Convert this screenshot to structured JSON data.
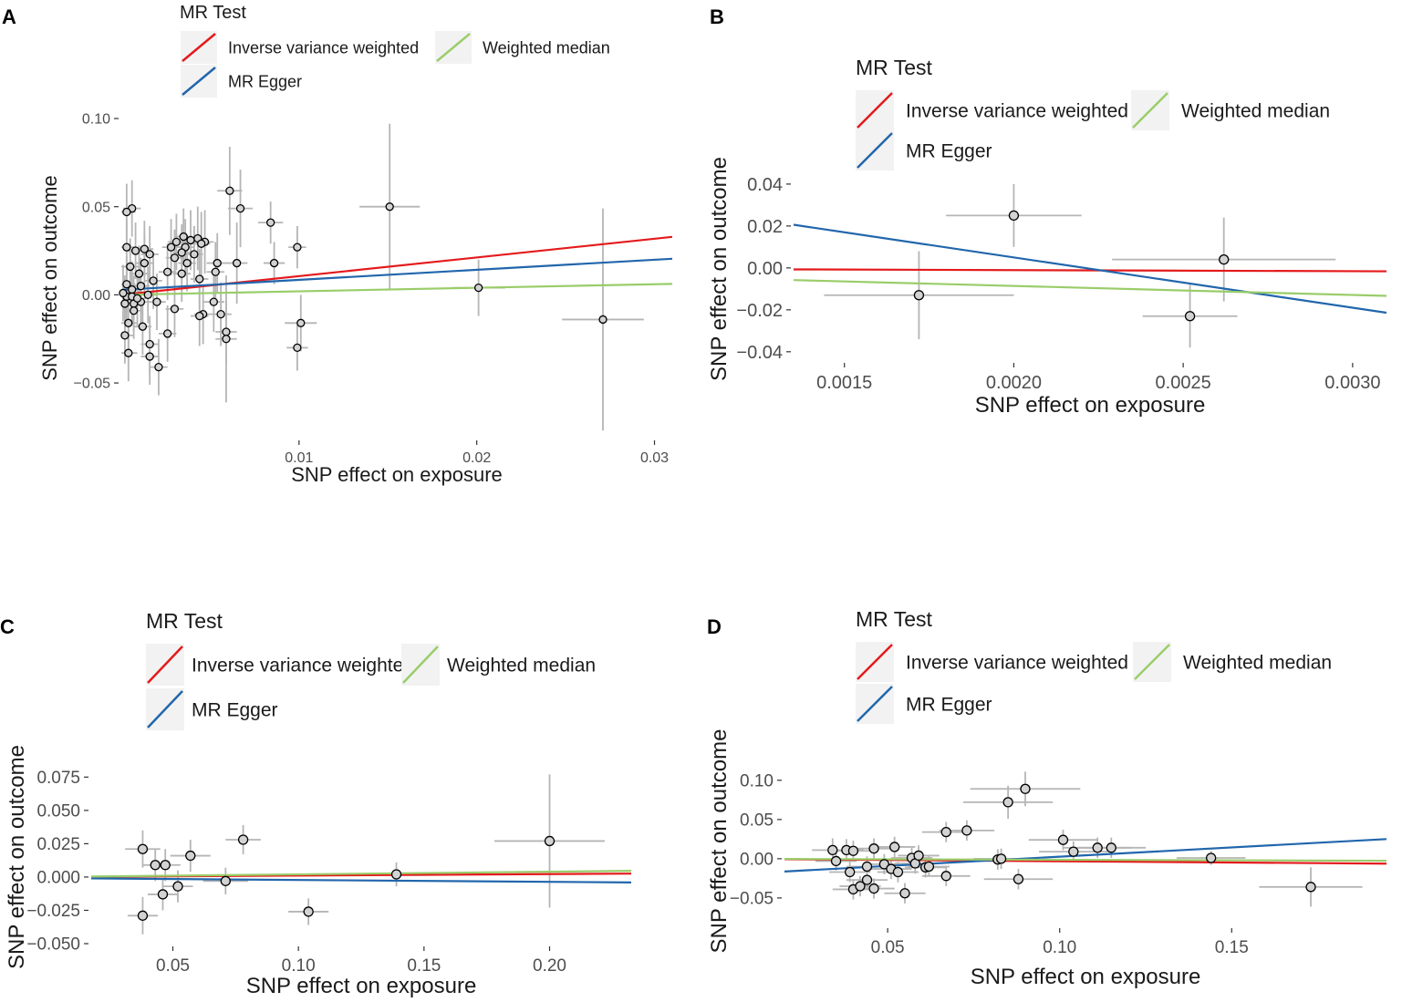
{
  "colors": {
    "ivw": "#E41A1C",
    "egger": "#2166AC",
    "wmedian": "#9ACD6A",
    "errorbar": "#B5B5B5",
    "point_fill": "#D3D3D3",
    "legend_key_bg": "#F2F2F2"
  },
  "legend": {
    "title": "MR Test",
    "items": [
      {
        "key": "ivw",
        "label": "Inverse variance weighted"
      },
      {
        "key": "wmedian",
        "label": "Weighted median"
      },
      {
        "key": "egger",
        "label": "MR Egger"
      }
    ]
  },
  "chart_data": [
    {
      "panel": "A",
      "type": "scatter",
      "xlabel": "SNP effect on exposure",
      "ylabel": "SNP effect on outcome",
      "xlim": [
        0.0,
        0.031
      ],
      "ylim": [
        -0.081,
        0.1
      ],
      "xticks": [
        {
          "v": 0.01,
          "label": "0.01"
        },
        {
          "v": 0.02,
          "label": "0.02"
        },
        {
          "v": 0.03,
          "label": "0.03"
        }
      ],
      "yticks": [
        {
          "v": 0.1,
          "label": "0.10"
        },
        {
          "v": 0.05,
          "label": "0.05"
        },
        {
          "v": 0.0,
          "label": "0.00"
        },
        {
          "v": -0.05,
          "label": "−0.05"
        }
      ],
      "lines": [
        {
          "key": "ivw",
          "intercept": 0.0,
          "slope": 1.06
        },
        {
          "key": "egger",
          "intercept": 0.0028,
          "slope": 0.57
        },
        {
          "key": "wmedian",
          "intercept": 0.0,
          "slope": 0.2
        }
      ],
      "points": [
        {
          "x": 0.0151,
          "y": 0.05,
          "xe": 0.0017,
          "ye": 0.047
        },
        {
          "x": 0.0201,
          "y": 0.004,
          "xe": 0.0015,
          "ye": 0.016
        },
        {
          "x": 0.0271,
          "y": -0.014,
          "xe": 0.0023,
          "ye": 0.063
        },
        {
          "x": 0.0101,
          "y": -0.016,
          "xe": 0.0009,
          "ye": 0.016
        },
        {
          "x": 0.0099,
          "y": -0.03,
          "xe": 0.0006,
          "ye": 0.013
        },
        {
          "x": 0.0099,
          "y": 0.027,
          "xe": 0.0005,
          "ye": 0.012
        },
        {
          "x": 0.0084,
          "y": 0.041,
          "xe": 0.0007,
          "ye": 0.012
        },
        {
          "x": 0.0086,
          "y": 0.018,
          "xe": 0.0006,
          "ye": 0.012
        },
        {
          "x": 0.0067,
          "y": 0.049,
          "xe": 0.0007,
          "ye": 0.022
        },
        {
          "x": 0.0061,
          "y": 0.059,
          "xe": 0.0007,
          "ye": 0.025
        },
        {
          "x": 0.0065,
          "y": 0.018,
          "xe": 0.0006,
          "ye": 0.023
        },
        {
          "x": 0.0059,
          "y": -0.021,
          "xe": 0.0006,
          "ye": 0.018
        },
        {
          "x": 0.0059,
          "y": -0.025,
          "xe": 0.0006,
          "ye": 0.036
        },
        {
          "x": 0.0056,
          "y": -0.011,
          "xe": 0.0006,
          "ye": 0.018
        },
        {
          "x": 0.0052,
          "y": -0.004,
          "xe": 0.0006,
          "ye": 0.017
        },
        {
          "x": 0.0054,
          "y": 0.018,
          "xe": 0.0006,
          "ye": 0.017
        },
        {
          "x": 0.0053,
          "y": 0.013,
          "xe": 0.0005,
          "ye": 0.017
        },
        {
          "x": 0.0047,
          "y": 0.03,
          "xe": 0.0005,
          "ye": 0.018
        },
        {
          "x": 0.0043,
          "y": 0.032,
          "xe": 0.0005,
          "ye": 0.018
        },
        {
          "x": 0.0045,
          "y": 0.029,
          "xe": 0.0005,
          "ye": 0.018
        },
        {
          "x": 0.0044,
          "y": 0.009,
          "xe": 0.0005,
          "ye": 0.017
        },
        {
          "x": 0.0046,
          "y": -0.011,
          "xe": 0.0005,
          "ye": 0.017
        },
        {
          "x": 0.0044,
          "y": -0.012,
          "xe": 0.0005,
          "ye": 0.017
        },
        {
          "x": 0.0041,
          "y": 0.023,
          "xe": 0.0005,
          "ye": 0.016
        },
        {
          "x": 0.0039,
          "y": 0.031,
          "xe": 0.0005,
          "ye": 0.017
        },
        {
          "x": 0.0037,
          "y": 0.018,
          "xe": 0.0005,
          "ye": 0.016
        },
        {
          "x": 0.0036,
          "y": 0.027,
          "xe": 0.0005,
          "ye": 0.016
        },
        {
          "x": 0.0035,
          "y": 0.033,
          "xe": 0.0005,
          "ye": 0.016
        },
        {
          "x": 0.0034,
          "y": 0.024,
          "xe": 0.0005,
          "ye": 0.016
        },
        {
          "x": 0.0034,
          "y": 0.012,
          "xe": 0.0005,
          "ye": 0.016
        },
        {
          "x": 0.0031,
          "y": 0.03,
          "xe": 0.0005,
          "ye": 0.016
        },
        {
          "x": 0.003,
          "y": 0.021,
          "xe": 0.0005,
          "ye": 0.016
        },
        {
          "x": 0.003,
          "y": -0.008,
          "xe": 0.0005,
          "ye": 0.016
        },
        {
          "x": 0.0028,
          "y": 0.027,
          "xe": 0.0005,
          "ye": 0.016
        },
        {
          "x": 0.0026,
          "y": 0.013,
          "xe": 0.0005,
          "ye": 0.016
        },
        {
          "x": 0.0026,
          "y": -0.022,
          "xe": 0.0005,
          "ye": 0.016
        },
        {
          "x": 0.0016,
          "y": -0.035,
          "xe": 0.0005,
          "ye": 0.016
        },
        {
          "x": 0.0016,
          "y": 0.023,
          "xe": 0.0005,
          "ye": 0.016
        },
        {
          "x": 0.0016,
          "y": -0.028,
          "xe": 0.0005,
          "ye": 0.016
        },
        {
          "x": 0.0013,
          "y": 0.026,
          "xe": 0.0005,
          "ye": 0.016
        },
        {
          "x": 0.0013,
          "y": 0.018,
          "xe": 0.0005,
          "ye": 0.016
        },
        {
          "x": 0.0011,
          "y": 0.005,
          "xe": 0.0005,
          "ye": 0.016
        },
        {
          "x": 0.0011,
          "y": -0.004,
          "xe": 0.0005,
          "ye": 0.016
        },
        {
          "x": 0.001,
          "y": 0.012,
          "xe": 0.0005,
          "ye": 0.016
        },
        {
          "x": 0.0008,
          "y": 0.025,
          "xe": 0.0005,
          "ye": 0.016
        },
        {
          "x": 0.0007,
          "y": -0.005,
          "xe": 0.0005,
          "ye": 0.016
        },
        {
          "x": 0.0007,
          "y": -0.009,
          "xe": 0.0005,
          "ye": 0.016
        },
        {
          "x": 0.0006,
          "y": 0.003,
          "xe": 0.0005,
          "ye": 0.016
        },
        {
          "x": 0.0006,
          "y": 0.049,
          "xe": 0.0005,
          "ye": 0.016
        },
        {
          "x": 0.0004,
          "y": -0.033,
          "xe": 0.0005,
          "ye": 0.016
        },
        {
          "x": 0.0004,
          "y": -0.016,
          "xe": 0.0005,
          "ye": 0.016
        },
        {
          "x": 0.0003,
          "y": 0.047,
          "xe": 0.0005,
          "ye": 0.016
        },
        {
          "x": 0.0003,
          "y": 0.027,
          "xe": 0.0005,
          "ye": 0.016
        },
        {
          "x": 0.0003,
          "y": 0.006,
          "xe": 0.0005,
          "ye": 0.016
        },
        {
          "x": 0.0003,
          "y": -0.001,
          "xe": 0.0005,
          "ye": 0.016
        },
        {
          "x": 0.0002,
          "y": -0.023,
          "xe": 0.0005,
          "ye": 0.016
        },
        {
          "x": 0.0002,
          "y": -0.005,
          "xe": 0.0005,
          "ye": 0.016
        },
        {
          "x": 0.0001,
          "y": 0.001,
          "xe": 0.0005,
          "ye": 0.016
        },
        {
          "x": 0.0005,
          "y": 0.016,
          "xe": 0.0005,
          "ye": 0.016
        },
        {
          "x": 0.0006,
          "y": -0.001,
          "xe": 0.0005,
          "ye": 0.016
        },
        {
          "x": 0.0009,
          "y": -0.002,
          "xe": 0.0005,
          "ye": 0.016
        },
        {
          "x": 0.0012,
          "y": -0.018,
          "xe": 0.0005,
          "ye": 0.016
        },
        {
          "x": 0.0018,
          "y": 0.008,
          "xe": 0.0005,
          "ye": 0.016
        },
        {
          "x": 0.002,
          "y": -0.004,
          "xe": 0.0005,
          "ye": 0.016
        },
        {
          "x": 0.0021,
          "y": -0.041,
          "xe": 0.0005,
          "ye": 0.016
        },
        {
          "x": 0.0015,
          "y": 0.0,
          "xe": 0.0005,
          "ye": 0.016
        }
      ]
    },
    {
      "panel": "B",
      "type": "scatter",
      "xlabel": "SNP effect on exposure",
      "ylabel": "SNP effect on outcome",
      "xlim": [
        0.00135,
        0.0031
      ],
      "ylim": [
        -0.044,
        0.043
      ],
      "xticks": [
        {
          "v": 0.0015,
          "label": "0.0015"
        },
        {
          "v": 0.002,
          "label": "0.0020"
        },
        {
          "v": 0.0025,
          "label": "0.0025"
        },
        {
          "v": 0.003,
          "label": "0.0030"
        }
      ],
      "yticks": [
        {
          "v": 0.04,
          "label": "0.04"
        },
        {
          "v": 0.02,
          "label": "0.02"
        },
        {
          "v": 0.0,
          "label": "0.00"
        },
        {
          "v": -0.02,
          "label": "−0.02"
        },
        {
          "v": -0.04,
          "label": "−0.04"
        }
      ],
      "lines": [
        {
          "key": "ivw",
          "intercept": 0.0,
          "slope": -0.52
        },
        {
          "key": "egger",
          "intercept": 0.053,
          "slope": -24.0
        },
        {
          "key": "wmedian",
          "intercept": 0.0,
          "slope": -4.3
        }
      ],
      "points": [
        {
          "x": 0.00172,
          "y": -0.013,
          "xe": 0.00028,
          "ye": 0.021
        },
        {
          "x": 0.002,
          "y": 0.025,
          "xe": 0.0002,
          "ye": 0.015
        },
        {
          "x": 0.00252,
          "y": -0.023,
          "xe": 0.00014,
          "ye": 0.015
        },
        {
          "x": 0.00262,
          "y": 0.004,
          "xe": 0.00033,
          "ye": 0.02
        }
      ]
    },
    {
      "panel": "C",
      "type": "scatter",
      "xlabel": "SNP effect on exposure",
      "ylabel": "SNP effect on outcome",
      "xlim": [
        0.0175,
        0.2325
      ],
      "ylim": [
        -0.05,
        0.08
      ],
      "xticks": [
        {
          "v": 0.05,
          "label": "0.05"
        },
        {
          "v": 0.1,
          "label": "0.10"
        },
        {
          "v": 0.15,
          "label": "0.15"
        },
        {
          "v": 0.2,
          "label": "0.20"
        }
      ],
      "yticks": [
        {
          "v": 0.075,
          "label": "0.075"
        },
        {
          "v": 0.05,
          "label": "0.050"
        },
        {
          "v": 0.025,
          "label": "0.025"
        },
        {
          "v": 0.0,
          "label": "0.000"
        },
        {
          "v": -0.025,
          "label": "−0.025"
        },
        {
          "v": -0.05,
          "label": "−0.050"
        }
      ],
      "lines": [
        {
          "key": "ivw",
          "intercept": 0.0,
          "slope": 0.011
        },
        {
          "key": "egger",
          "intercept": -0.0008,
          "slope": -0.014
        },
        {
          "key": "wmedian",
          "intercept": 0.0,
          "slope": 0.02
        }
      ],
      "points": [
        {
          "x": 0.038,
          "y": 0.021,
          "xe": 0.007,
          "ye": 0.014
        },
        {
          "x": 0.038,
          "y": -0.029,
          "xe": 0.006,
          "ye": 0.014
        },
        {
          "x": 0.043,
          "y": 0.009,
          "xe": 0.005,
          "ye": 0.012
        },
        {
          "x": 0.047,
          "y": 0.009,
          "xe": 0.006,
          "ye": 0.012
        },
        {
          "x": 0.046,
          "y": -0.013,
          "xe": 0.006,
          "ye": 0.012
        },
        {
          "x": 0.052,
          "y": -0.007,
          "xe": 0.006,
          "ye": 0.012
        },
        {
          "x": 0.057,
          "y": 0.016,
          "xe": 0.008,
          "ye": 0.012
        },
        {
          "x": 0.071,
          "y": -0.003,
          "xe": 0.009,
          "ye": 0.01
        },
        {
          "x": 0.078,
          "y": 0.028,
          "xe": 0.007,
          "ye": 0.011
        },
        {
          "x": 0.104,
          "y": -0.026,
          "xe": 0.008,
          "ye": 0.01
        },
        {
          "x": 0.139,
          "y": 0.002,
          "xe": 0.015,
          "ye": 0.009
        },
        {
          "x": 0.2,
          "y": 0.027,
          "xe": 0.022,
          "ye": 0.05
        }
      ]
    },
    {
      "panel": "D",
      "type": "scatter",
      "xlabel": "SNP effect on exposure",
      "ylabel": "SNP effect on outcome",
      "xlim": [
        0.02,
        0.195
      ],
      "ylim": [
        -0.085,
        0.13
      ],
      "xticks": [
        {
          "v": 0.05,
          "label": "0.05"
        },
        {
          "v": 0.1,
          "label": "0.10"
        },
        {
          "v": 0.15,
          "label": "0.15"
        }
      ],
      "yticks": [
        {
          "v": 0.1,
          "label": "0.10"
        },
        {
          "v": 0.05,
          "label": "0.05"
        },
        {
          "v": 0.0,
          "label": "0.00"
        },
        {
          "v": -0.05,
          "label": "−0.05"
        }
      ],
      "lines": [
        {
          "key": "ivw",
          "intercept": 0.0,
          "slope": -0.032
        },
        {
          "key": "egger",
          "intercept": -0.021,
          "slope": 0.236
        },
        {
          "key": "wmedian",
          "intercept": 0.0,
          "slope": -0.013
        }
      ],
      "points": [
        {
          "x": 0.034,
          "y": 0.011,
          "xe": 0.006,
          "ye": 0.015
        },
        {
          "x": 0.035,
          "y": -0.003,
          "xe": 0.006,
          "ye": 0.012
        },
        {
          "x": 0.038,
          "y": 0.011,
          "xe": 0.005,
          "ye": 0.014
        },
        {
          "x": 0.04,
          "y": 0.01,
          "xe": 0.006,
          "ye": 0.013
        },
        {
          "x": 0.039,
          "y": -0.017,
          "xe": 0.006,
          "ye": 0.013
        },
        {
          "x": 0.04,
          "y": -0.039,
          "xe": 0.006,
          "ye": 0.013
        },
        {
          "x": 0.042,
          "y": -0.035,
          "xe": 0.006,
          "ye": 0.013
        },
        {
          "x": 0.044,
          "y": -0.01,
          "xe": 0.006,
          "ye": 0.013
        },
        {
          "x": 0.044,
          "y": -0.027,
          "xe": 0.006,
          "ye": 0.013
        },
        {
          "x": 0.046,
          "y": 0.013,
          "xe": 0.006,
          "ye": 0.013
        },
        {
          "x": 0.046,
          "y": -0.038,
          "xe": 0.006,
          "ye": 0.013
        },
        {
          "x": 0.049,
          "y": -0.007,
          "xe": 0.006,
          "ye": 0.013
        },
        {
          "x": 0.051,
          "y": -0.013,
          "xe": 0.006,
          "ye": 0.013
        },
        {
          "x": 0.052,
          "y": 0.015,
          "xe": 0.006,
          "ye": 0.013
        },
        {
          "x": 0.053,
          "y": -0.017,
          "xe": 0.006,
          "ye": 0.013
        },
        {
          "x": 0.055,
          "y": -0.044,
          "xe": 0.006,
          "ye": 0.013
        },
        {
          "x": 0.057,
          "y": 0.001,
          "xe": 0.006,
          "ye": 0.013
        },
        {
          "x": 0.058,
          "y": -0.006,
          "xe": 0.006,
          "ye": 0.013
        },
        {
          "x": 0.059,
          "y": 0.004,
          "xe": 0.006,
          "ye": 0.013
        },
        {
          "x": 0.061,
          "y": -0.011,
          "xe": 0.006,
          "ye": 0.013
        },
        {
          "x": 0.062,
          "y": -0.01,
          "xe": 0.006,
          "ye": 0.013
        },
        {
          "x": 0.067,
          "y": 0.034,
          "xe": 0.007,
          "ye": 0.013
        },
        {
          "x": 0.067,
          "y": -0.022,
          "xe": 0.007,
          "ye": 0.013
        },
        {
          "x": 0.073,
          "y": 0.036,
          "xe": 0.008,
          "ye": 0.013
        },
        {
          "x": 0.082,
          "y": -0.001,
          "xe": 0.01,
          "ye": 0.013
        },
        {
          "x": 0.083,
          "y": 0.0,
          "xe": 0.008,
          "ye": 0.013
        },
        {
          "x": 0.085,
          "y": 0.072,
          "xe": 0.013,
          "ye": 0.021
        },
        {
          "x": 0.088,
          "y": -0.026,
          "xe": 0.01,
          "ye": 0.013
        },
        {
          "x": 0.09,
          "y": 0.089,
          "xe": 0.016,
          "ye": 0.022
        },
        {
          "x": 0.101,
          "y": 0.024,
          "xe": 0.01,
          "ye": 0.013
        },
        {
          "x": 0.104,
          "y": 0.009,
          "xe": 0.01,
          "ye": 0.013
        },
        {
          "x": 0.111,
          "y": 0.014,
          "xe": 0.01,
          "ye": 0.013
        },
        {
          "x": 0.115,
          "y": 0.014,
          "xe": 0.01,
          "ye": 0.013
        },
        {
          "x": 0.144,
          "y": 0.001,
          "xe": 0.01,
          "ye": 0.009
        },
        {
          "x": 0.173,
          "y": -0.036,
          "xe": 0.015,
          "ye": 0.025
        }
      ]
    }
  ]
}
